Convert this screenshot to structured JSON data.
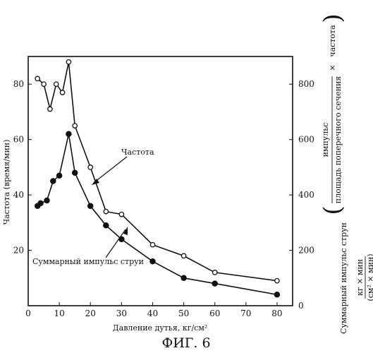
{
  "figure_label": "ФИГ. 6",
  "chart_data": {
    "type": "line",
    "xlabel": "Давление дутья, кг/см²",
    "ylabel_left": "Частота (время/мин)",
    "ylabel_right": {
      "prefix": "Суммарный импульс струн",
      "numerator": "импульс",
      "denominator": "площадь поперечного сечения",
      "times": "×",
      "factor": "частота",
      "unit_numerator": "кг × мин",
      "unit_denominator": "(см² × мин)"
    },
    "xlim": [
      0,
      85
    ],
    "ylim_left": [
      0,
      90
    ],
    "ylim_right": [
      0,
      900
    ],
    "x_ticks": [
      0,
      10,
      20,
      30,
      40,
      50,
      60,
      70,
      80
    ],
    "y_ticks_left": [
      20,
      40,
      60,
      80
    ],
    "y_ticks_right": [
      0,
      200,
      400,
      600,
      800
    ],
    "grid": false,
    "annotations": [
      {
        "text": "Частота",
        "series": "frequency"
      },
      {
        "text": "Суммарный импульс струи",
        "series": "impulse"
      }
    ],
    "series": [
      {
        "id": "frequency",
        "marker": "open-circle",
        "axis": "left",
        "x": [
          3,
          5,
          7,
          9,
          11,
          13,
          15,
          20,
          25,
          30,
          40,
          50,
          60,
          80
        ],
        "y": [
          82,
          80,
          71,
          80,
          77,
          88,
          65,
          50,
          34,
          33,
          22,
          18,
          12,
          9
        ]
      },
      {
        "id": "impulse",
        "marker": "filled-circle",
        "axis": "left",
        "x": [
          3,
          4,
          6,
          8,
          10,
          13,
          15,
          20,
          25,
          30,
          40,
          50,
          60,
          80
        ],
        "y": [
          36,
          37,
          38,
          45,
          47,
          62,
          48,
          36,
          29,
          24,
          16,
          10,
          8,
          4
        ]
      }
    ]
  }
}
